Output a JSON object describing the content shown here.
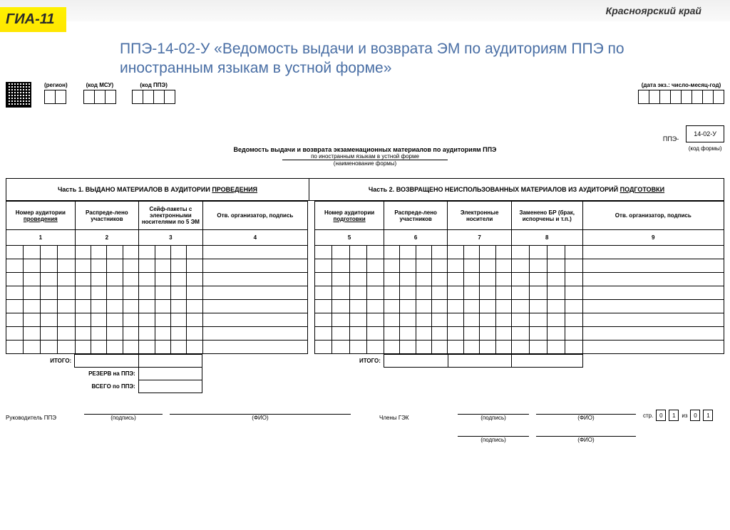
{
  "top": {
    "region": "Красноярский край",
    "gia": "ГИА-11"
  },
  "title": "ППЭ-14-02-У «Ведомость выдачи и возврата ЭМ по аудиториям ППЭ по иностранным языкам в устной форме»",
  "hdr": {
    "region_lbl": "(регион)",
    "msu_lbl": "(код МСУ)",
    "ppe_lbl": "(код ППЭ)",
    "date_lbl": "(дата экз.: число-месяц-год)",
    "ppe_prefix": "ППЭ-",
    "form_code": "14-02-У",
    "form_code_sub": "(код формы)"
  },
  "cells": {
    "region": 2,
    "msu": 3,
    "ppe": 4,
    "date": 8
  },
  "center": {
    "line1": "Ведомость выдачи и возврата экзаменационных материалов по аудиториям ППЭ",
    "line2": "по иностранным языкам в устной форме",
    "caption": "(наименование формы)"
  },
  "parts": {
    "p1": "Часть 1. ВЫДАНО МАТЕРИАЛОВ В АУДИТОРИИ ",
    "p1_u": "ПРОВЕДЕНИЯ",
    "p2": "Часть 2. ВОЗВРАЩЕНО НЕИСПОЛЬЗОВАННЫХ МАТЕРИАЛОВ ИЗ АУДИТОРИЙ ",
    "p2_u": "ПОДГОТОВКИ"
  },
  "cols": {
    "c1a": "Номер аудитории",
    "c1b": "проведения",
    "c2": "Распреде-лено участников",
    "c3": "Сейф-пакеты с электронными носителями по 5 ЭМ",
    "c4": "Отв. организатор, подпись",
    "c5a": "Номер аудитории",
    "c5b": "подготовки",
    "c6": "Распреде-лено участников",
    "c7": "Электронные носители",
    "c8": "Заменено БР (брак, испорчены и т.п.)",
    "c9": "Отв. организатор, подпись",
    "n1": "1",
    "n2": "2",
    "n3": "3",
    "n4": "4",
    "n5": "5",
    "n6": "6",
    "n7": "7",
    "n8": "8",
    "n9": "9"
  },
  "widths": {
    "c1": 95,
    "c2": 88,
    "c3": 88,
    "c4": 145,
    "gap": 10,
    "c5": 95,
    "c6": 88,
    "c7": 88,
    "c8": 98,
    "c9": 195
  },
  "rows": 8,
  "totals": {
    "itogo": "ИТОГО:",
    "reserv": "РЕЗЕРВ на ППЭ:",
    "vsego": "ВСЕГО по ППЭ:"
  },
  "sig": {
    "ruk": "Руководитель ППЭ",
    "gek": "Члены ГЭК",
    "podpis": "(подпись)",
    "fio": "(ФИО)",
    "str": "стр.",
    "iz": "из",
    "p1": "0",
    "p2": "1",
    "p3": "0",
    "p4": "1"
  }
}
